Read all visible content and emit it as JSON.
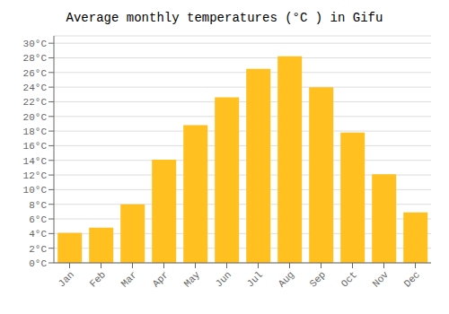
{
  "chart_data": {
    "type": "bar",
    "title": "Average monthly temperatures (°C ) in Gifu",
    "categories": [
      "Jan",
      "Feb",
      "Mar",
      "Apr",
      "May",
      "Jun",
      "Jul",
      "Aug",
      "Sep",
      "Oct",
      "Nov",
      "Dec"
    ],
    "values": [
      4.1,
      4.8,
      8.0,
      14.1,
      18.8,
      22.6,
      26.5,
      28.2,
      24.0,
      17.8,
      12.1,
      6.9
    ],
    "color": "#FFC020",
    "ylim": [
      0,
      31
    ],
    "yticks": [
      {
        "value": 0,
        "label": "0°C"
      },
      {
        "value": 2,
        "label": "2°C"
      },
      {
        "value": 4,
        "label": "4°C"
      },
      {
        "value": 6,
        "label": "6°C"
      },
      {
        "value": 8,
        "label": "8°C"
      },
      {
        "value": 10,
        "label": "10°C"
      },
      {
        "value": 12,
        "label": "12°C"
      },
      {
        "value": 14,
        "label": "14°C"
      },
      {
        "value": 16,
        "label": "16°C"
      },
      {
        "value": 18,
        "label": "18°C"
      },
      {
        "value": 20,
        "label": "20°C"
      },
      {
        "value": 22,
        "label": "22°C"
      },
      {
        "value": 24,
        "label": "24°C"
      },
      {
        "value": 26,
        "label": "26°C"
      },
      {
        "value": 28,
        "label": "28°C"
      },
      {
        "value": 30,
        "label": "30°C"
      }
    ],
    "grid": true
  }
}
